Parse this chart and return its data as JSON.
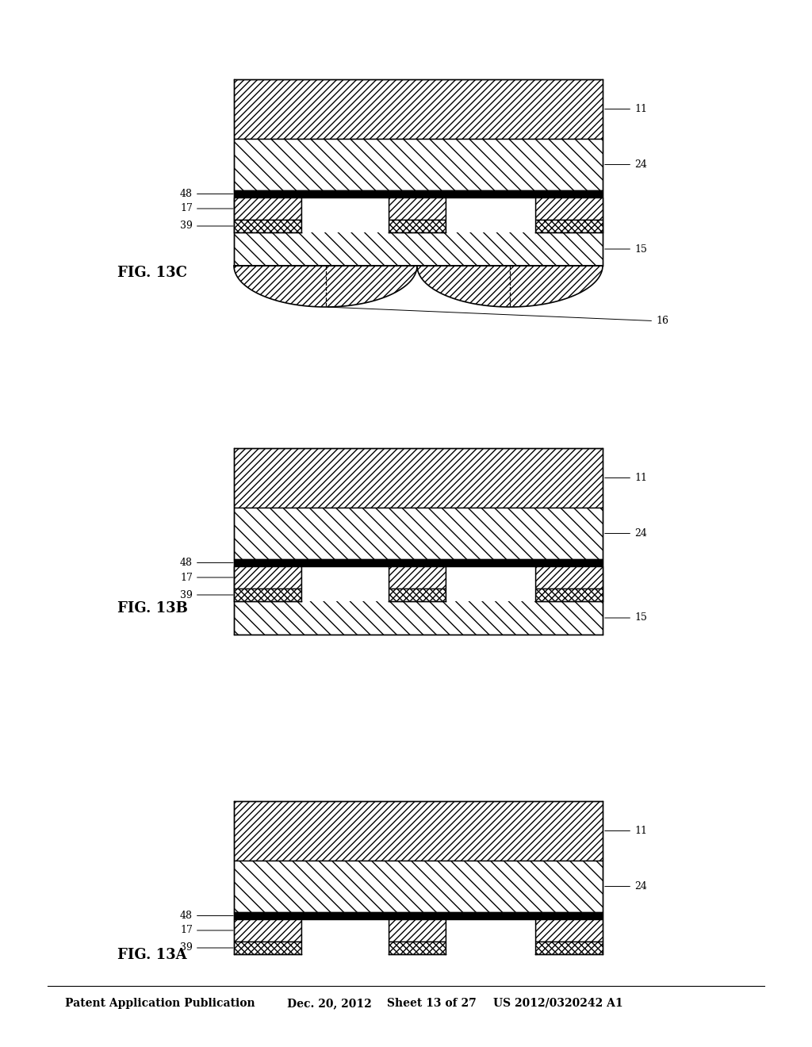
{
  "title_text": "Patent Application Publication",
  "date_text": "Dec. 20, 2012",
  "sheet_text": "Sheet 13 of 27",
  "patent_text": "US 2012/0320242 A1",
  "fig_labels": [
    "FIG. 13A",
    "FIG. 13B",
    "FIG. 13C"
  ],
  "bg_color": "#ffffff",
  "line_color": "#000000"
}
